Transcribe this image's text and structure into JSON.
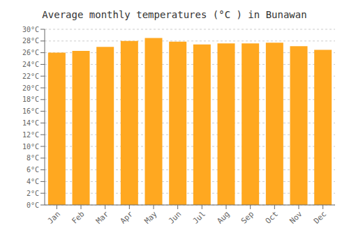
{
  "chart_data": {
    "type": "bar",
    "title": "Average monthly temperatures (°C ) in Bunawan",
    "categories": [
      "Jan",
      "Feb",
      "Mar",
      "Apr",
      "May",
      "Jun",
      "Jul",
      "Aug",
      "Sep",
      "Oct",
      "Nov",
      "Dec"
    ],
    "values": [
      26.0,
      26.3,
      27.0,
      28.0,
      28.5,
      27.9,
      27.4,
      27.6,
      27.6,
      27.7,
      27.1,
      26.5
    ],
    "color": "#FFA820",
    "ylim": [
      0,
      30
    ],
    "yticks": [
      {
        "value": 0,
        "label": "0°C"
      },
      {
        "value": 2,
        "label": "2°C"
      },
      {
        "value": 4,
        "label": "4°C"
      },
      {
        "value": 6,
        "label": "6°C"
      },
      {
        "value": 8,
        "label": "8°C"
      },
      {
        "value": 10,
        "label": "10°C"
      },
      {
        "value": 12,
        "label": "12°C"
      },
      {
        "value": 14,
        "label": "14°C"
      },
      {
        "value": 16,
        "label": "16°C"
      },
      {
        "value": 18,
        "label": "18°C"
      },
      {
        "value": 20,
        "label": "20°C"
      },
      {
        "value": 22,
        "label": "22°C"
      },
      {
        "value": 24,
        "label": "24°C"
      },
      {
        "value": 26,
        "label": "26°C"
      },
      {
        "value": 28,
        "label": "28°C"
      },
      {
        "value": 30,
        "label": "30°C"
      }
    ],
    "grid": true
  }
}
